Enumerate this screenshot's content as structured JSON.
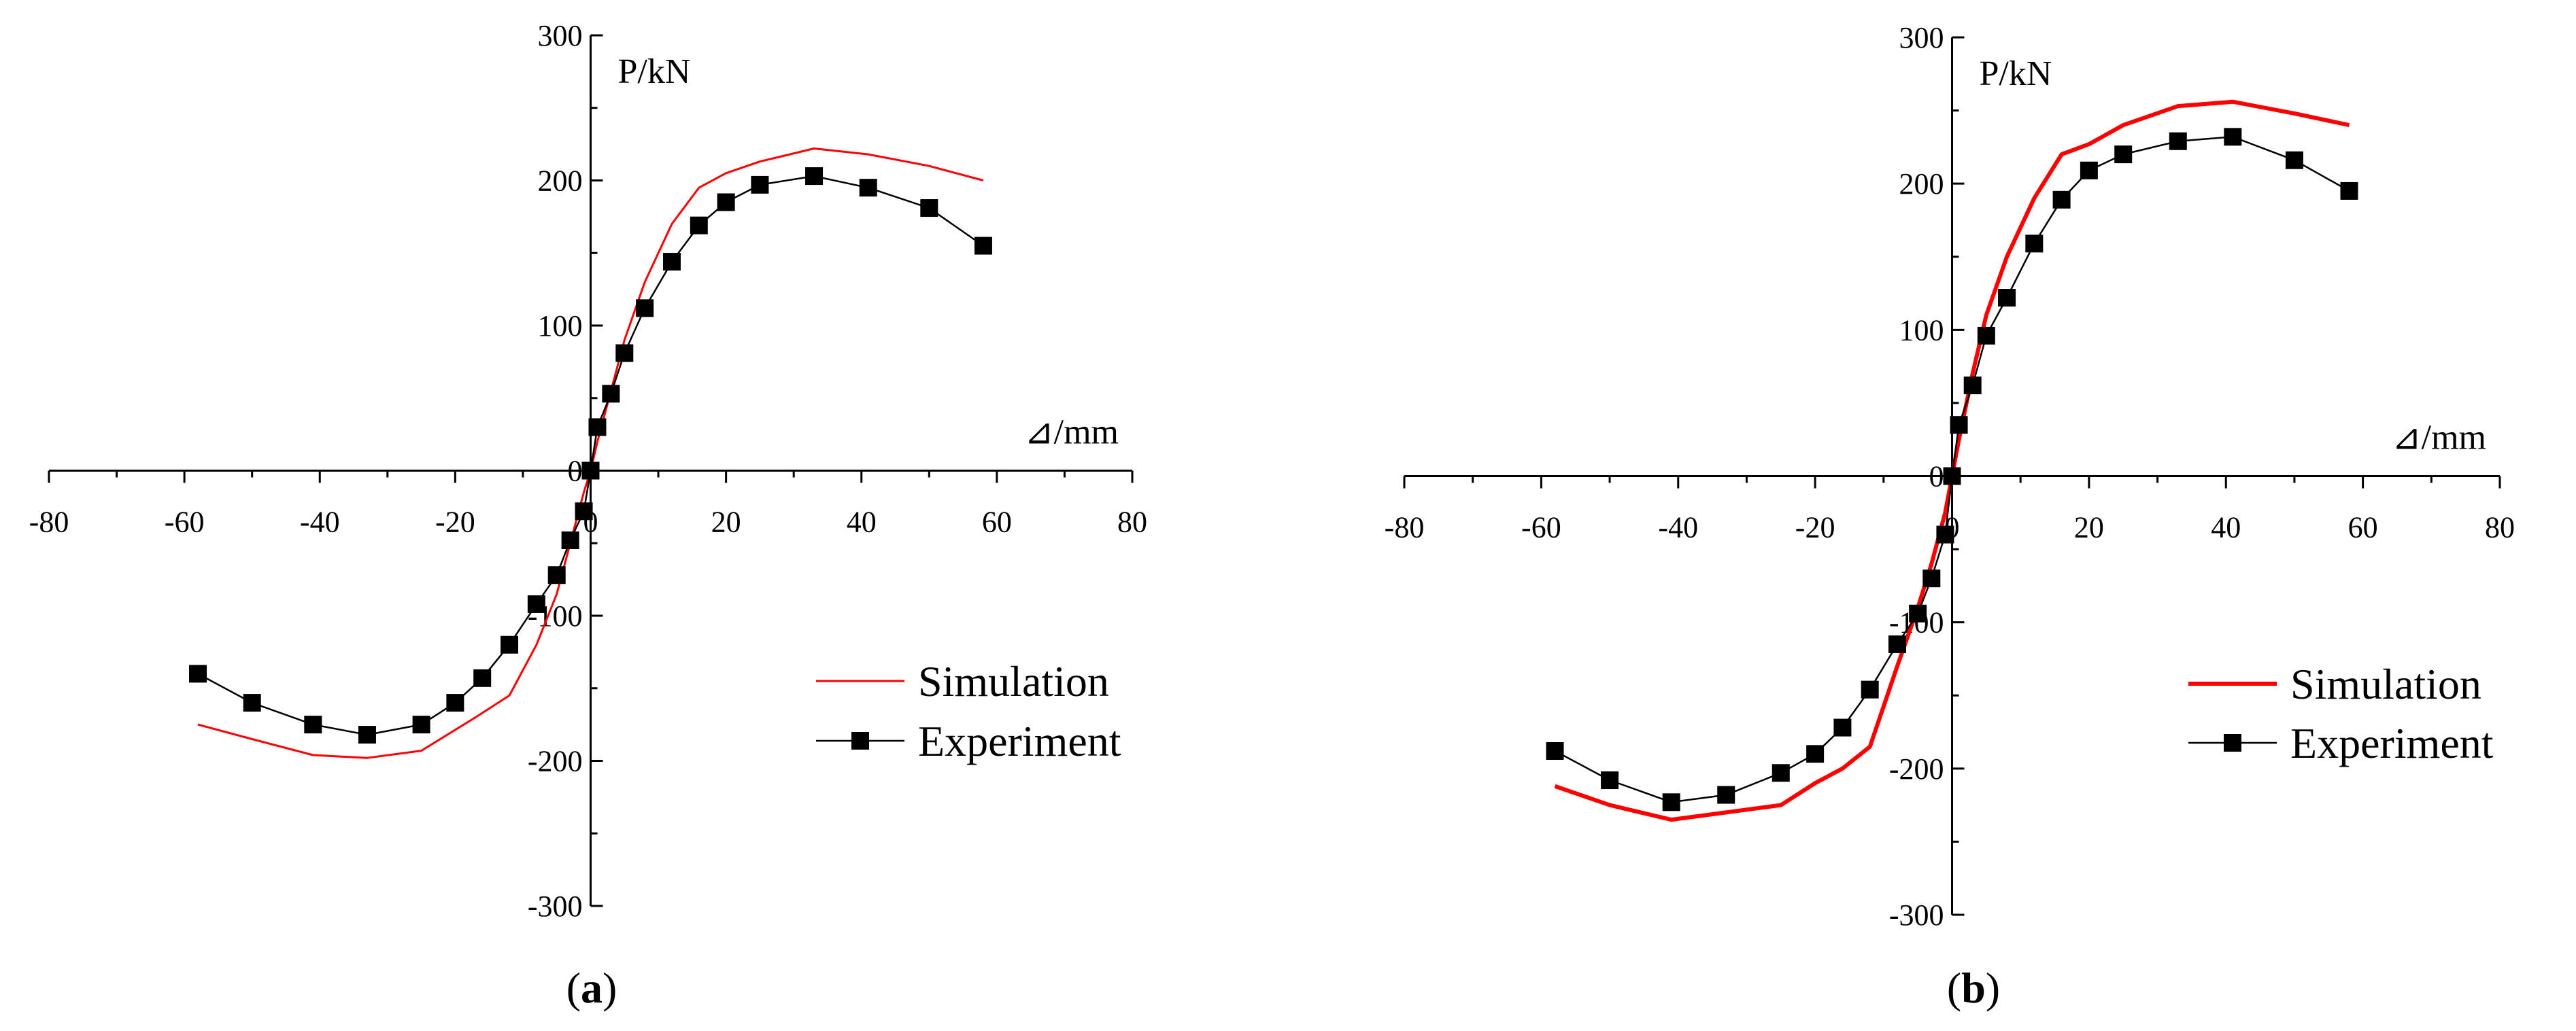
{
  "chart_data": [
    {
      "type": "line",
      "caption": {
        "open": "(",
        "letter": "a",
        "close": ")"
      },
      "xlabel": "⊿/mm",
      "ylabel": "P/kN",
      "xlim": [
        -80,
        80
      ],
      "ylim": [
        -300,
        300
      ],
      "xticks": [
        -80,
        -60,
        -40,
        -20,
        0,
        20,
        40,
        60,
        80
      ],
      "yticks": [
        -300,
        -200,
        -100,
        0,
        100,
        200,
        300
      ],
      "xtick_labels": [
        "-80",
        "-60",
        "-40",
        "-20",
        "0",
        "20",
        "40",
        "60",
        "80"
      ],
      "ytick_labels": [
        "-300",
        "-200",
        "-100",
        "0",
        "100",
        "200",
        "300"
      ],
      "legend": {
        "position": "bottom-right",
        "entries": [
          "Simulation",
          "Experiment"
        ]
      },
      "series": [
        {
          "name": "Simulation",
          "color": "#ff0000",
          "marker": "none",
          "x": [
            -58,
            -50,
            -41,
            -33,
            -25,
            -17,
            -12,
            -8,
            -5,
            -3,
            -1,
            0,
            1,
            3,
            5,
            8,
            12,
            16,
            20,
            25,
            33,
            41,
            50,
            58
          ],
          "y": [
            -175,
            -185,
            -196,
            -198,
            -193,
            -170,
            -155,
            -120,
            -85,
            -50,
            -15,
            0,
            20,
            55,
            90,
            130,
            170,
            195,
            205,
            213,
            222,
            218,
            210,
            200
          ]
        },
        {
          "name": "Experiment",
          "color": "#000000",
          "marker": "square",
          "x": [
            -58,
            -50,
            -41,
            -33,
            -25,
            -20,
            -16,
            -12,
            -8,
            -5,
            -3,
            -1,
            0,
            1,
            3,
            5,
            8,
            12,
            16,
            20,
            25,
            33,
            41,
            50,
            58
          ],
          "y": [
            -140,
            -160,
            -175,
            -182,
            -175,
            -160,
            -143,
            -120,
            -92,
            -72,
            -48,
            -28,
            0,
            30,
            53,
            81,
            112,
            144,
            169,
            185,
            197,
            203,
            195,
            181,
            155
          ]
        }
      ]
    },
    {
      "type": "line",
      "caption": {
        "open": "(",
        "letter": "b",
        "close": ")"
      },
      "xlabel": "⊿/mm",
      "ylabel": "P/kN",
      "xlim": [
        -80,
        80
      ],
      "ylim": [
        -300,
        300
      ],
      "xticks": [
        -80,
        -60,
        -40,
        -20,
        0,
        20,
        40,
        60,
        80
      ],
      "yticks": [
        -300,
        -200,
        -100,
        0,
        100,
        200,
        300
      ],
      "xtick_labels": [
        "-80",
        "-60",
        "-40",
        "-20",
        "0",
        "20",
        "40",
        "60",
        "80"
      ],
      "ytick_labels": [
        "-300",
        "-200",
        "-100",
        "0",
        "100",
        "200",
        "300"
      ],
      "legend": {
        "position": "bottom-right",
        "entries": [
          "Simulation",
          "Experiment"
        ]
      },
      "series": [
        {
          "name": "Simulation",
          "color": "#ff0000",
          "marker": "none",
          "x": [
            -58,
            -50,
            -41,
            -33,
            -25,
            -20,
            -16,
            -12,
            -8,
            -5,
            -3,
            -1,
            0,
            1,
            3,
            5,
            8,
            12,
            16,
            20,
            25,
            33,
            41,
            50,
            58
          ],
          "y": [
            -212,
            -225,
            -235,
            -230,
            -225,
            -210,
            -200,
            -185,
            -130,
            -90,
            -60,
            -25,
            0,
            25,
            70,
            110,
            150,
            190,
            220,
            227,
            240,
            253,
            256,
            248,
            240
          ]
        },
        {
          "name": "Experiment",
          "color": "#000000",
          "marker": "square",
          "x": [
            -58,
            -50,
            -41,
            -33,
            -25,
            -20,
            -16,
            -12,
            -8,
            -5,
            -3,
            -1,
            0,
            1,
            3,
            5,
            8,
            12,
            16,
            20,
            25,
            33,
            41,
            50,
            58
          ],
          "y": [
            -188,
            -208,
            -223,
            -218,
            -203,
            -190,
            -172,
            -146,
            -115,
            -94,
            -70,
            -40,
            0,
            35,
            62,
            96,
            122,
            159,
            189,
            209,
            220,
            229,
            232,
            216,
            195
          ]
        }
      ]
    }
  ]
}
